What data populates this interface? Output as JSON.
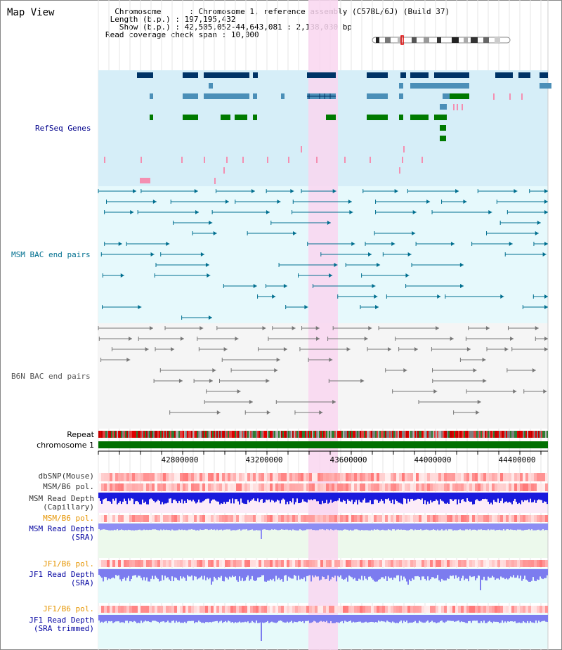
{
  "title": "Map View",
  "info": {
    "chromosome_label": "Chromosome",
    "chromosome_value": "Chromosome 1, reference assembly (C57BL/6J) (Build 37)",
    "length_label": "Length (b.p.)",
    "length_value": "197,195,432",
    "show_label": "Show (b.p.)",
    "show_value": "42,505,052-44,643,081 : 2,138,030 bp",
    "coverage_label": "Read coverage check span",
    "coverage_value": "10,000"
  },
  "tracks": {
    "refseq": "RefSeq Genes",
    "msm_bac": "MSM BAC end pairs",
    "b6n_bac": "B6N BAC end pairs",
    "repeat": "Repeat",
    "chromosome": "chromosome 1",
    "dbsnp": "dbSNP(Mouse)",
    "msm_b6_pol_1": "MSM/B6 pol.",
    "msm_depth_cap_1": "MSM Read Depth",
    "msm_depth_cap_2": "(Capillary)",
    "msm_b6_pol_2": "MSM/B6 pol.",
    "msm_depth_sra_1": "MSM Read Depth",
    "msm_depth_sra_2": "(SRA)",
    "jf1_b6_pol_1": "JF1/B6 pol.",
    "jf1_depth_sra_1": "JF1 Read Depth",
    "jf1_depth_sra_2": "(SRA)",
    "jf1_b6_pol_2": "JF1/B6 pol.",
    "jf1_depth_trim_1": "JF1 Read Depth",
    "jf1_depth_trim_2": "(SRA trimmed)"
  },
  "axis_ticks": [
    "42800000",
    "43200000",
    "43600000",
    "44000000",
    "44400000"
  ],
  "colors": {
    "refseq_label": "#00008b",
    "bac_msm_label": "#006f8f",
    "bac_b6n_label": "#555555",
    "orange_label": "#e69500",
    "blue_label": "#0000a0",
    "highlight": "#f9d6f0",
    "chromosome_bar": "#007000"
  }
}
